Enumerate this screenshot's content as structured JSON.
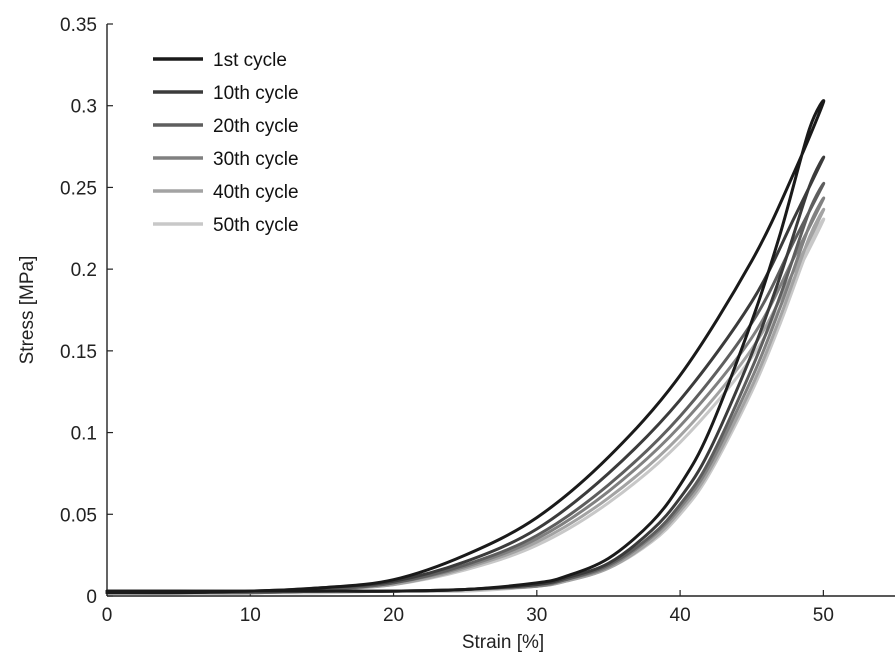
{
  "chart_data": {
    "type": "line",
    "title": "",
    "xlabel": "Strain [%]",
    "ylabel": "Stress [MPa]",
    "xlim": [
      0,
      55
    ],
    "ylim": [
      0,
      0.35
    ],
    "xticks": [
      0,
      10,
      20,
      30,
      40,
      50
    ],
    "xtick_labels": [
      "0",
      "10",
      "20",
      "30",
      "40",
      "50"
    ],
    "yticks": [
      0,
      0.05,
      0.1,
      0.15,
      0.2,
      0.25,
      0.3,
      0.35
    ],
    "ytick_labels": [
      "0",
      "0.05",
      "0.1",
      "0.15",
      "0.2",
      "0.25",
      "0.3",
      "0.35"
    ],
    "grid": false,
    "legend_position": "top-left",
    "series": [
      {
        "name": "1st cycle",
        "color": "#1a1a1a",
        "x": [
          0,
          5,
          10,
          15,
          20,
          25,
          30,
          35,
          40,
          45,
          48,
          50,
          49,
          47,
          45,
          42,
          40,
          38,
          35,
          32,
          30,
          25,
          20,
          15,
          10,
          5,
          0
        ],
        "y": [
          0.003,
          0.003,
          0.003,
          0.005,
          0.01,
          0.025,
          0.048,
          0.085,
          0.135,
          0.205,
          0.26,
          0.302,
          0.285,
          0.222,
          0.168,
          0.1,
          0.068,
          0.045,
          0.023,
          0.012,
          0.008,
          0.004,
          0.003,
          0.003,
          0.003,
          0.002,
          0.002
        ]
      },
      {
        "name": "10th cycle",
        "color": "#3b3b3b",
        "x": [
          0,
          5,
          10,
          15,
          20,
          25,
          30,
          35,
          40,
          45,
          48,
          50,
          49,
          47,
          45,
          42,
          40,
          38,
          35,
          32,
          30,
          25,
          20,
          15,
          10,
          5,
          0
        ],
        "y": [
          0.003,
          0.003,
          0.003,
          0.005,
          0.009,
          0.021,
          0.041,
          0.075,
          0.12,
          0.18,
          0.232,
          0.268,
          0.25,
          0.196,
          0.148,
          0.088,
          0.06,
          0.04,
          0.02,
          0.011,
          0.007,
          0.004,
          0.003,
          0.003,
          0.003,
          0.002,
          0.002
        ]
      },
      {
        "name": "20th cycle",
        "color": "#5e5e5e",
        "x": [
          0,
          5,
          10,
          15,
          20,
          25,
          30,
          35,
          40,
          45,
          48,
          50,
          49,
          47,
          45,
          42,
          40,
          38,
          35,
          32,
          30,
          25,
          20,
          15,
          10,
          5,
          0
        ],
        "y": [
          0.003,
          0.003,
          0.003,
          0.004,
          0.008,
          0.019,
          0.037,
          0.068,
          0.11,
          0.167,
          0.218,
          0.252,
          0.235,
          0.184,
          0.139,
          0.082,
          0.056,
          0.037,
          0.019,
          0.01,
          0.007,
          0.004,
          0.003,
          0.003,
          0.002,
          0.002,
          0.002
        ]
      },
      {
        "name": "30th cycle",
        "color": "#808080",
        "x": [
          0,
          5,
          10,
          15,
          20,
          25,
          30,
          35,
          40,
          45,
          48,
          50,
          49,
          47,
          45,
          42,
          40,
          38,
          35,
          32,
          30,
          25,
          20,
          15,
          10,
          5,
          0
        ],
        "y": [
          0.003,
          0.003,
          0.003,
          0.004,
          0.008,
          0.018,
          0.035,
          0.064,
          0.104,
          0.158,
          0.208,
          0.243,
          0.226,
          0.177,
          0.133,
          0.079,
          0.054,
          0.036,
          0.018,
          0.01,
          0.006,
          0.004,
          0.003,
          0.003,
          0.002,
          0.002,
          0.002
        ]
      },
      {
        "name": "40th cycle",
        "color": "#a3a3a3",
        "x": [
          0,
          5,
          10,
          15,
          20,
          25,
          30,
          35,
          40,
          45,
          48,
          50,
          49,
          47,
          45,
          42,
          40,
          38,
          35,
          32,
          30,
          25,
          20,
          15,
          10,
          5,
          0
        ],
        "y": [
          0.003,
          0.003,
          0.003,
          0.004,
          0.007,
          0.017,
          0.033,
          0.06,
          0.098,
          0.151,
          0.2,
          0.236,
          0.219,
          0.171,
          0.128,
          0.076,
          0.052,
          0.034,
          0.017,
          0.009,
          0.006,
          0.004,
          0.003,
          0.003,
          0.002,
          0.002,
          0.002
        ]
      },
      {
        "name": "50th cycle",
        "color": "#c8c8c8",
        "x": [
          0,
          5,
          10,
          15,
          20,
          25,
          30,
          35,
          40,
          45,
          48,
          50,
          49,
          47,
          45,
          42,
          40,
          38,
          35,
          32,
          30,
          25,
          20,
          15,
          10,
          5,
          0
        ],
        "y": [
          0.003,
          0.003,
          0.003,
          0.004,
          0.007,
          0.016,
          0.031,
          0.057,
          0.094,
          0.146,
          0.195,
          0.23,
          0.214,
          0.167,
          0.125,
          0.074,
          0.05,
          0.033,
          0.017,
          0.009,
          0.006,
          0.003,
          0.003,
          0.002,
          0.002,
          0.002,
          0.002
        ]
      }
    ]
  }
}
